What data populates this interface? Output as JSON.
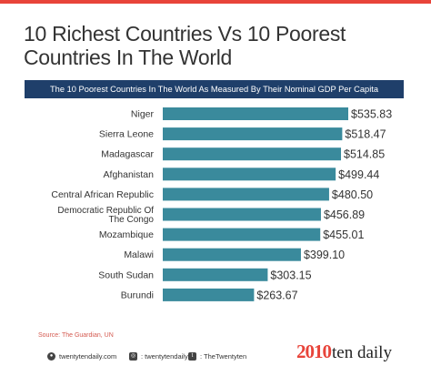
{
  "header": {
    "title": "10 Richest Countries Vs 10 Poorest Countries In The World",
    "subtitle": "The 10 Poorest Countries In The World As Measured By Their Nominal GDP Per Capita"
  },
  "source": "Source: The Guardian, UN",
  "footer": {
    "website": "twentytendaily.com",
    "instagram": ": twentytendaily",
    "twitter": ": TheTwentyten",
    "logo_number": "2010",
    "logo_text": "ten daily"
  },
  "colors": {
    "bar": "#3a8a9c",
    "banner": "#1f3f6a",
    "accent": "#e8443a"
  },
  "chart_data": {
    "type": "bar",
    "orientation": "horizontal",
    "title": "The 10 Poorest Countries In The World As Measured By Their Nominal GDP Per Capita",
    "categories": [
      "Niger",
      "Sierra Leone",
      "Madagascar",
      "Afghanistan",
      "Central African Republic",
      "Democratic Republic Of The Congo",
      "Mozambique",
      "Malawi",
      "South Sudan",
      "Burundi"
    ],
    "values": [
      535.83,
      518.47,
      514.85,
      499.44,
      480.5,
      456.89,
      455.01,
      399.1,
      303.15,
      263.67
    ],
    "value_labels": [
      "$535.83",
      "$518.47",
      "$514.85",
      "$499.44",
      "$480.50",
      "$456.89",
      "$455.01",
      "$399.10",
      "$303.15",
      "$263.67"
    ],
    "category_label_lines": [
      [
        "Niger"
      ],
      [
        "Sierra Leone"
      ],
      [
        "Madagascar"
      ],
      [
        "Afghanistan"
      ],
      [
        "Central African Republic"
      ],
      [
        "Democratic Republic Of",
        "The Congo"
      ],
      [
        "Mozambique"
      ],
      [
        "Malawi"
      ],
      [
        "South Sudan"
      ],
      [
        "Burundi"
      ]
    ],
    "xlim": [
      0,
      535.83
    ],
    "grid": false,
    "legend": "none"
  }
}
